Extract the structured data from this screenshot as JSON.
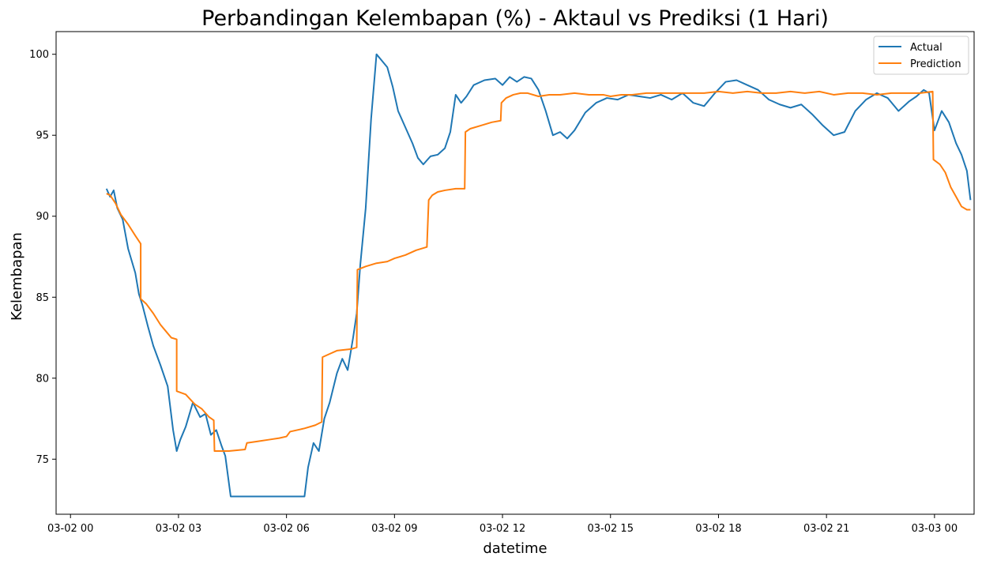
{
  "chart_data": {
    "type": "line",
    "title": "Perbandingan Kelembapan (%) - Aktaul vs Prediksi (1 Hari)",
    "xlabel": "datetime",
    "ylabel": "Kelembapan",
    "xlim": [
      -0.4,
      25.1
    ],
    "ylim": [
      71.6,
      101.4
    ],
    "x_unit": "hours since 03-02 00:00",
    "x_ticks": [
      0,
      3,
      6,
      9,
      12,
      15,
      18,
      21,
      24
    ],
    "x_tick_labels": [
      "03-02 00",
      "03-02 03",
      "03-02 06",
      "03-02 09",
      "03-02 12",
      "03-02 15",
      "03-02 18",
      "03-02 21",
      "03-03 00"
    ],
    "y_ticks": [
      75,
      80,
      85,
      90,
      95,
      100
    ],
    "y_tick_labels": [
      "75",
      "80",
      "85",
      "90",
      "95",
      "100"
    ],
    "grid": false,
    "legend_position": "top-right",
    "series": [
      {
        "name": "Actual",
        "color": "#1f77b4",
        "x": [
          1.0,
          1.1,
          1.2,
          1.3,
          1.45,
          1.6,
          1.8,
          1.9,
          2.0,
          2.15,
          2.3,
          2.5,
          2.7,
          2.85,
          2.95,
          3.05,
          3.2,
          3.4,
          3.6,
          3.75,
          3.9,
          4.05,
          4.2,
          4.3,
          4.45,
          4.6,
          4.8,
          5.0,
          5.5,
          6.0,
          6.5,
          6.6,
          6.75,
          6.9,
          7.05,
          7.2,
          7.4,
          7.55,
          7.7,
          7.85,
          7.95,
          8.05,
          8.2,
          8.35,
          8.5,
          8.65,
          8.8,
          8.95,
          9.1,
          9.3,
          9.5,
          9.65,
          9.8,
          10.0,
          10.2,
          10.4,
          10.55,
          10.7,
          10.85,
          11.0,
          11.2,
          11.5,
          11.8,
          12.0,
          12.2,
          12.4,
          12.6,
          12.8,
          13.0,
          13.2,
          13.4,
          13.6,
          13.8,
          14.0,
          14.3,
          14.6,
          14.9,
          15.2,
          15.5,
          15.8,
          16.1,
          16.4,
          16.7,
          17.0,
          17.3,
          17.6,
          17.9,
          18.2,
          18.5,
          18.8,
          19.1,
          19.4,
          19.7,
          20.0,
          20.3,
          20.6,
          20.9,
          21.2,
          21.5,
          21.8,
          22.1,
          22.4,
          22.7,
          23.0,
          23.3,
          23.5,
          23.7,
          23.85,
          24.0,
          24.2,
          24.4,
          24.6,
          24.75,
          24.9,
          25.0
        ],
        "values": [
          91.7,
          91.2,
          91.6,
          90.5,
          89.8,
          88.0,
          86.5,
          85.2,
          84.5,
          83.2,
          82.0,
          80.8,
          79.5,
          76.8,
          75.5,
          76.2,
          77.0,
          78.5,
          77.6,
          77.8,
          76.5,
          76.8,
          75.8,
          75.2,
          72.7,
          72.7,
          72.7,
          72.7,
          72.7,
          72.7,
          72.7,
          74.5,
          76.0,
          75.5,
          77.5,
          78.5,
          80.3,
          81.2,
          80.5,
          82.5,
          84.0,
          87.0,
          90.5,
          96.0,
          100.0,
          99.6,
          99.2,
          98.0,
          96.5,
          95.5,
          94.5,
          93.6,
          93.2,
          93.7,
          93.8,
          94.2,
          95.2,
          97.5,
          97.0,
          97.4,
          98.1,
          98.4,
          98.5,
          98.1,
          98.6,
          98.3,
          98.6,
          98.5,
          97.8,
          96.5,
          95.0,
          95.2,
          94.8,
          95.3,
          96.4,
          97.0,
          97.3,
          97.2,
          97.5,
          97.4,
          97.3,
          97.5,
          97.2,
          97.6,
          97.0,
          96.8,
          97.6,
          98.3,
          98.4,
          98.1,
          97.8,
          97.2,
          96.9,
          96.7,
          96.9,
          96.3,
          95.6,
          95.0,
          95.2,
          96.5,
          97.2,
          97.6,
          97.3,
          96.5,
          97.1,
          97.4,
          97.8,
          97.6,
          95.3,
          96.5,
          95.8,
          94.5,
          93.8,
          92.8,
          91.0
        ]
      },
      {
        "name": "Prediction",
        "color": "#ff7f0e",
        "x": [
          1.0,
          1.1,
          1.25,
          1.4,
          1.6,
          1.8,
          1.95,
          1.95,
          2.1,
          2.3,
          2.5,
          2.65,
          2.8,
          2.95,
          2.95,
          3.2,
          3.45,
          3.65,
          3.85,
          3.98,
          4.0,
          4.4,
          4.85,
          4.9,
          5.2,
          5.5,
          5.8,
          6.0,
          6.1,
          6.5,
          6.8,
          6.98,
          7.0,
          7.2,
          7.4,
          7.8,
          7.95,
          7.97,
          8.2,
          8.5,
          8.8,
          9.0,
          9.3,
          9.6,
          9.9,
          9.95,
          10.05,
          10.2,
          10.4,
          10.7,
          10.95,
          10.97,
          11.1,
          11.4,
          11.7,
          11.95,
          11.97,
          12.1,
          12.3,
          12.5,
          12.7,
          13.0,
          13.3,
          13.6,
          14.0,
          14.4,
          14.8,
          15.0,
          15.3,
          15.6,
          16.0,
          16.4,
          16.8,
          17.2,
          17.6,
          18.0,
          18.4,
          18.8,
          19.2,
          19.6,
          20.0,
          20.4,
          20.8,
          21.2,
          21.6,
          22.0,
          22.4,
          22.8,
          23.2,
          23.6,
          23.95,
          23.97,
          24.15,
          24.3,
          24.45,
          24.6,
          24.75,
          24.9,
          25.0
        ],
        "values": [
          91.4,
          91.3,
          90.8,
          90.1,
          89.5,
          88.8,
          88.3,
          84.9,
          84.6,
          84.0,
          83.3,
          82.9,
          82.5,
          82.4,
          79.2,
          79.0,
          78.4,
          78.1,
          77.6,
          77.4,
          75.5,
          75.5,
          75.6,
          76.0,
          76.1,
          76.2,
          76.3,
          76.4,
          76.7,
          76.9,
          77.1,
          77.3,
          81.3,
          81.5,
          81.7,
          81.8,
          81.9,
          86.7,
          86.9,
          87.1,
          87.2,
          87.4,
          87.6,
          87.9,
          88.1,
          91.0,
          91.3,
          91.5,
          91.6,
          91.7,
          91.7,
          95.2,
          95.4,
          95.6,
          95.8,
          95.9,
          97.0,
          97.3,
          97.5,
          97.6,
          97.6,
          97.4,
          97.5,
          97.5,
          97.6,
          97.5,
          97.5,
          97.4,
          97.5,
          97.5,
          97.6,
          97.6,
          97.6,
          97.6,
          97.6,
          97.7,
          97.6,
          97.7,
          97.6,
          97.6,
          97.7,
          97.6,
          97.7,
          97.5,
          97.6,
          97.6,
          97.5,
          97.6,
          97.6,
          97.6,
          97.7,
          93.5,
          93.2,
          92.7,
          91.8,
          91.2,
          90.6,
          90.4,
          90.4
        ]
      }
    ]
  }
}
